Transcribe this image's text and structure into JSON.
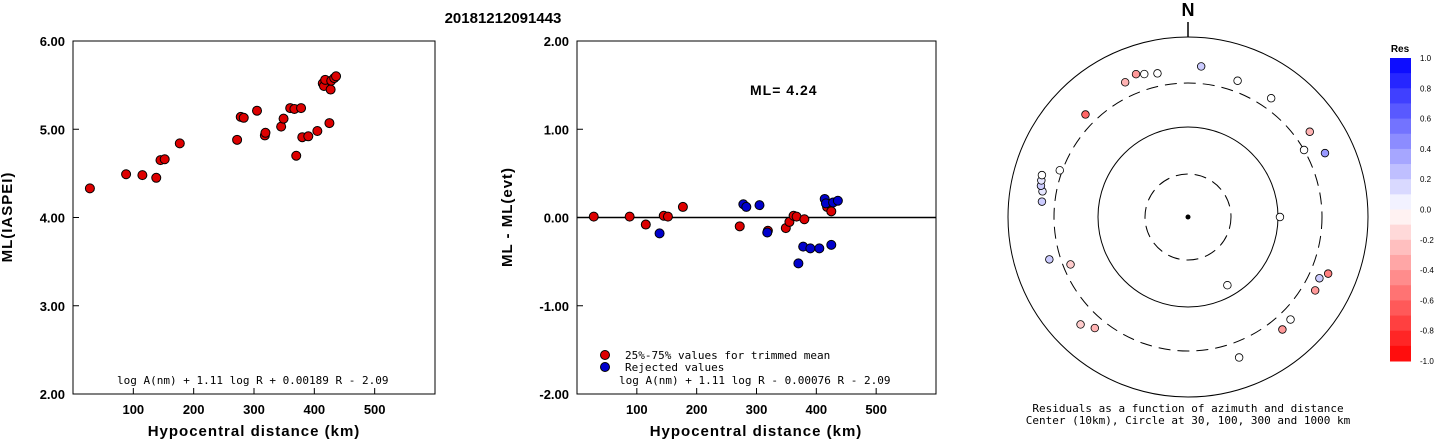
{
  "figure_title": "20181212091443",
  "chart_data": [
    {
      "type": "scatter",
      "xlabel": "Hypocentral distance (km)",
      "ylabel": "ML(IASPEI)",
      "xlim": [
        0,
        600
      ],
      "ylim": [
        2.0,
        6.0
      ],
      "xticks": [
        "100",
        "200",
        "300",
        "400",
        "500"
      ],
      "yticks": [
        "2.00",
        "3.00",
        "4.00",
        "5.00",
        "6.00"
      ],
      "formula": "log A(nm) + 1.11 log R + 0.00189 R - 2.09",
      "marker_color": "#dd0000",
      "points": [
        [
          28,
          4.33
        ],
        [
          88,
          4.49
        ],
        [
          115,
          4.48
        ],
        [
          138,
          4.45
        ],
        [
          145,
          4.65
        ],
        [
          152,
          4.66
        ],
        [
          177,
          4.84
        ],
        [
          272,
          4.88
        ],
        [
          278,
          5.14
        ],
        [
          283,
          5.13
        ],
        [
          305,
          5.21
        ],
        [
          318,
          4.93
        ],
        [
          319,
          4.96
        ],
        [
          345,
          5.03
        ],
        [
          349,
          5.12
        ],
        [
          360,
          5.24
        ],
        [
          367,
          5.23
        ],
        [
          370,
          4.7
        ],
        [
          378,
          5.24
        ],
        [
          380,
          4.91
        ],
        [
          390,
          4.92
        ],
        [
          405,
          4.98
        ],
        [
          414,
          5.52
        ],
        [
          416,
          5.49
        ],
        [
          418,
          5.56
        ],
        [
          425,
          5.07
        ],
        [
          427,
          5.45
        ],
        [
          428,
          5.55
        ],
        [
          433,
          5.58
        ],
        [
          436,
          5.6
        ]
      ]
    },
    {
      "type": "scatter",
      "xlabel": "Hypocentral distance (km)",
      "ylabel": "ML - ML(evt)",
      "xlim": [
        0,
        600
      ],
      "ylim": [
        -2.0,
        2.0
      ],
      "xticks": [
        "100",
        "200",
        "300",
        "400",
        "500"
      ],
      "yticks": [
        "-2.00",
        "-1.00",
        "0.00",
        "1.00",
        "2.00"
      ],
      "annotation": "ML= 4.24",
      "formula": "log A(nm) + 1.11 log R - 0.00076 R - 2.09",
      "legend": [
        {
          "label": "25%-75% values for trimmed mean",
          "color": "#dd0000"
        },
        {
          "label": "Rejected values",
          "color": "#0000cc"
        }
      ],
      "series": [
        {
          "color": "#dd0000",
          "points": [
            [
              28,
              0.01
            ],
            [
              88,
              0.01
            ],
            [
              115,
              -0.08
            ],
            [
              145,
              0.02
            ],
            [
              152,
              0.01
            ],
            [
              177,
              0.12
            ],
            [
              272,
              -0.1
            ],
            [
              319,
              -0.15
            ],
            [
              349,
              -0.12
            ],
            [
              355,
              -0.05
            ],
            [
              362,
              0.02
            ],
            [
              367,
              0.01
            ],
            [
              380,
              -0.02
            ],
            [
              418,
              0.12
            ],
            [
              425,
              0.07
            ]
          ]
        },
        {
          "color": "#0000cc",
          "points": [
            [
              138,
              -0.18
            ],
            [
              278,
              0.15
            ],
            [
              283,
              0.12
            ],
            [
              305,
              0.14
            ],
            [
              318,
              -0.17
            ],
            [
              370,
              -0.52
            ],
            [
              378,
              -0.33
            ],
            [
              390,
              -0.35
            ],
            [
              405,
              -0.35
            ],
            [
              414,
              0.21
            ],
            [
              416,
              0.16
            ],
            [
              425,
              -0.31
            ],
            [
              428,
              0.17
            ],
            [
              436,
              0.19
            ]
          ]
        }
      ]
    },
    {
      "type": "polar-scatter",
      "north_label": "N",
      "caption_line1": "Residuals as a function of azimuth and distance",
      "caption_line2": "Center (10km), Circle at 30, 100, 300 and 1000 km",
      "rings_km": [
        30,
        100,
        300,
        1000
      ],
      "colorbar_title": "Res",
      "colorbar_ticks": [
        "1.0",
        "0.8",
        "0.6",
        "0.4",
        "0.2",
        "0.0",
        "-0.2",
        "-0.4",
        "-0.6",
        "-0.8",
        "-1.0"
      ],
      "points": [
        {
          "az": 5,
          "dist": 470,
          "res": 0.2
        },
        {
          "az": 20,
          "dist": 400,
          "res": 0.0
        },
        {
          "az": 35,
          "dist": 400,
          "res": 0.0
        },
        {
          "az": 55,
          "dist": 440,
          "res": -0.3
        },
        {
          "az": 60,
          "dist": 300,
          "res": 0.0
        },
        {
          "az": 65,
          "dist": 470,
          "res": 0.4
        },
        {
          "az": 90,
          "dist": 105,
          "res": 0.0
        },
        {
          "az": 112,
          "dist": 470,
          "res": -0.5
        },
        {
          "az": 115,
          "dist": 400,
          "res": 0.2
        },
        {
          "az": 120,
          "dist": 420,
          "res": -0.4
        },
        {
          "az": 135,
          "dist": 400,
          "res": 0.0
        },
        {
          "az": 140,
          "dist": 420,
          "res": -0.4
        },
        {
          "az": 150,
          "dist": 75,
          "res": 0.0
        },
        {
          "az": 160,
          "dist": 450,
          "res": 0.0
        },
        {
          "az": 220,
          "dist": 400,
          "res": -0.3
        },
        {
          "az": 225,
          "dist": 480,
          "res": -0.2
        },
        {
          "az": 248,
          "dist": 250,
          "res": -0.2
        },
        {
          "az": 253,
          "dist": 400,
          "res": 0.2
        },
        {
          "az": 276,
          "dist": 420,
          "res": 0.2
        },
        {
          "az": 280,
          "dist": 430,
          "res": 0.1
        },
        {
          "az": 282,
          "dist": 460,
          "res": 0.2
        },
        {
          "az": 284,
          "dist": 470,
          "res": 0.1
        },
        {
          "az": 286,
          "dist": 480,
          "res": 0.0
        },
        {
          "az": 290,
          "dist": 320,
          "res": 0.0
        },
        {
          "az": 315,
          "dist": 400,
          "res": -0.6
        },
        {
          "az": 335,
          "dist": 440,
          "res": -0.3
        },
        {
          "az": 340,
          "dist": 480,
          "res": -0.4
        },
        {
          "az": 343,
          "dist": 450,
          "res": 0.0
        },
        {
          "az": 348,
          "dist": 420,
          "res": 0.0
        }
      ]
    }
  ]
}
